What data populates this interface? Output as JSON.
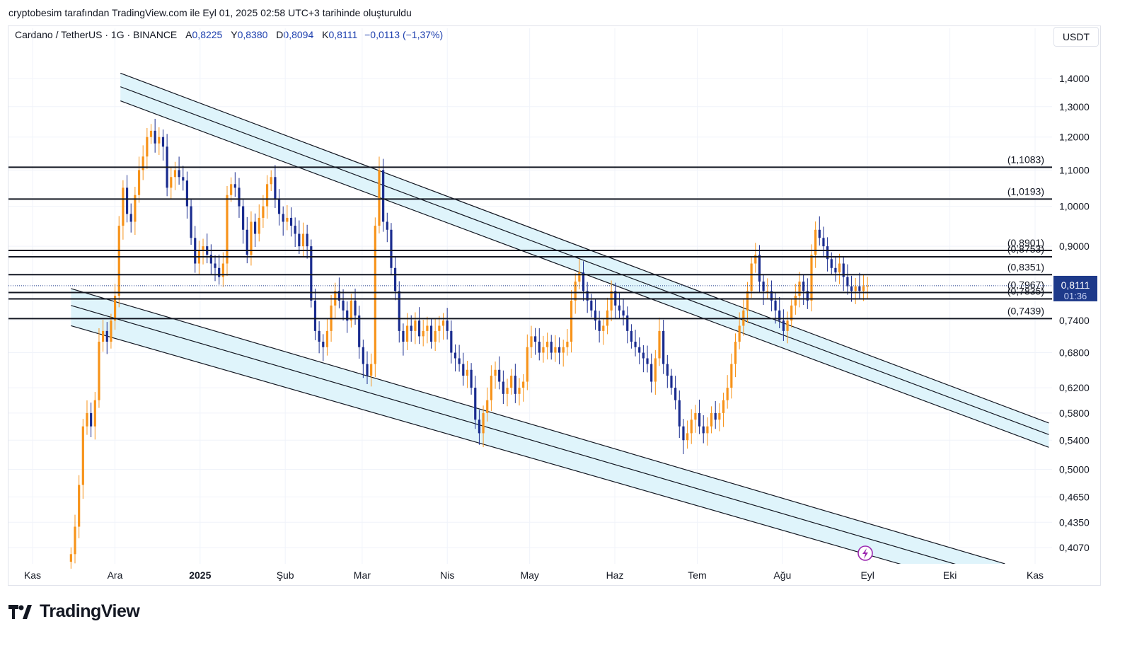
{
  "caption": "cryptobesim tarafından TradingView.com ile Eyl 01, 2025 02:58 UTC+3 tarihinde oluşturuldu",
  "legend": {
    "symbol": "Cardano / TetherUS · 1G · BINANCE",
    "open_label": "A",
    "open": "0,8225",
    "high_label": "Y",
    "high": "0,8380",
    "low_label": "D",
    "low": "0,8094",
    "close_label": "K",
    "close": "0,8111",
    "change": "−0,0113 (−1,37%)"
  },
  "currency_button": "USDT",
  "brand": "TradingView",
  "colors": {
    "up": "#f7931a",
    "down": "#1a2c8f",
    "channel_fill": "#dff4fb",
    "price_tag": "#1e3a8a",
    "lines": "#131722"
  },
  "chart_data": {
    "type": "candlestick",
    "instrument": "Cardano / TetherUS",
    "timeframe": "1G",
    "exchange": "BINANCE",
    "y_scale": "log",
    "ylim": [
      0.39,
      1.48
    ],
    "y_ticks": [
      1.4,
      1.3,
      1.2,
      1.1,
      1.0,
      0.9,
      0.74,
      0.68,
      0.62,
      0.58,
      0.54,
      0.5,
      0.465,
      0.435,
      0.407
    ],
    "y_tick_labels": [
      "1,4000",
      "1,3000",
      "1,2000",
      "1,1000",
      "1,0000",
      "0,9000",
      "0,7400",
      "0,6800",
      "0,6200",
      "0,5800",
      "0,5400",
      "0,5000",
      "0,4650",
      "0,4350",
      "0,4070"
    ],
    "x_labels": [
      "Kas",
      "Ara",
      "2025",
      "Şub",
      "Mar",
      "Nis",
      "May",
      "Haz",
      "Tem",
      "Ağu",
      "Eyl",
      "Eki",
      "Kas"
    ],
    "x_label_positions_days": [
      0,
      30,
      61,
      92,
      120,
      151,
      181,
      212,
      242,
      273,
      304,
      334,
      365
    ],
    "x_start": "2024-11-01",
    "horizontal_levels": [
      1.1083,
      1.0193,
      0.8901,
      0.8753,
      0.8351,
      0.7967,
      0.7835,
      0.7439
    ],
    "horizontal_level_labels": [
      "(1,1083)",
      "(1,0193)",
      "(0,8901)",
      "(0,8753)",
      "(0,8351)",
      "(0,7967)",
      "(0,7835)",
      "(0,7439)"
    ],
    "last_price": "0,8111",
    "countdown": "01:36",
    "channels": [
      {
        "name": "upper",
        "start_day": 32,
        "end_day": 370,
        "lines_start": [
          1.42,
          1.37,
          1.32
        ],
        "lines_end": [
          0.565,
          0.548,
          0.53
        ]
      },
      {
        "name": "lower",
        "start_day": 14,
        "end_day": 354,
        "lines_start": [
          0.805,
          0.77,
          0.73
        ],
        "lines_end": [
          0.39,
          0.375,
          0.36
        ]
      }
    ],
    "close_series": [
      {
        "d": 0,
        "c": 0.4
      },
      {
        "d": 1,
        "c": 0.43
      },
      {
        "d": 2,
        "c": 0.48
      },
      {
        "d": 3,
        "c": 0.56
      },
      {
        "d": 4,
        "c": 0.58
      },
      {
        "d": 5,
        "c": 0.56
      },
      {
        "d": 6,
        "c": 0.6
      },
      {
        "d": 7,
        "c": 0.7
      },
      {
        "d": 8,
        "c": 0.72
      },
      {
        "d": 9,
        "c": 0.7
      },
      {
        "d": 10,
        "c": 0.74
      },
      {
        "d": 11,
        "c": 0.79
      },
      {
        "d": 12,
        "c": 0.95
      },
      {
        "d": 13,
        "c": 1.05
      },
      {
        "d": 14,
        "c": 0.98
      },
      {
        "d": 15,
        "c": 0.96
      },
      {
        "d": 16,
        "c": 1.03
      },
      {
        "d": 17,
        "c": 1.1
      },
      {
        "d": 18,
        "c": 1.14
      },
      {
        "d": 19,
        "c": 1.2
      },
      {
        "d": 20,
        "c": 1.22
      },
      {
        "d": 21,
        "c": 1.18
      },
      {
        "d": 22,
        "c": 1.2
      },
      {
        "d": 23,
        "c": 1.17
      },
      {
        "d": 24,
        "c": 1.05
      },
      {
        "d": 25,
        "c": 1.08
      },
      {
        "d": 26,
        "c": 1.1
      },
      {
        "d": 27,
        "c": 1.08
      },
      {
        "d": 28,
        "c": 1.07
      },
      {
        "d": 29,
        "c": 1.0
      },
      {
        "d": 30,
        "c": 0.92
      },
      {
        "d": 31,
        "c": 0.86
      },
      {
        "d": 32,
        "c": 0.89
      },
      {
        "d": 33,
        "c": 0.9
      },
      {
        "d": 34,
        "c": 0.88
      },
      {
        "d": 35,
        "c": 0.86
      },
      {
        "d": 36,
        "c": 0.85
      },
      {
        "d": 37,
        "c": 0.83
      },
      {
        "d": 38,
        "c": 0.86
      },
      {
        "d": 39,
        "c": 1.03
      },
      {
        "d": 40,
        "c": 1.06
      },
      {
        "d": 41,
        "c": 1.05
      },
      {
        "d": 42,
        "c": 1.0
      },
      {
        "d": 43,
        "c": 0.94
      },
      {
        "d": 44,
        "c": 0.88
      },
      {
        "d": 45,
        "c": 0.96
      },
      {
        "d": 46,
        "c": 0.93
      },
      {
        "d": 47,
        "c": 0.97
      },
      {
        "d": 48,
        "c": 1.0
      },
      {
        "d": 49,
        "c": 1.06
      },
      {
        "d": 50,
        "c": 1.08
      },
      {
        "d": 51,
        "c": 1.02
      },
      {
        "d": 52,
        "c": 0.98
      },
      {
        "d": 53,
        "c": 0.96
      },
      {
        "d": 54,
        "c": 0.97
      },
      {
        "d": 55,
        "c": 0.95
      },
      {
        "d": 56,
        "c": 0.93
      },
      {
        "d": 57,
        "c": 0.9
      },
      {
        "d": 58,
        "c": 0.93
      },
      {
        "d": 59,
        "c": 0.9
      },
      {
        "d": 60,
        "c": 0.78
      },
      {
        "d": 61,
        "c": 0.72
      },
      {
        "d": 62,
        "c": 0.7
      },
      {
        "d": 63,
        "c": 0.69
      },
      {
        "d": 64,
        "c": 0.72
      },
      {
        "d": 65,
        "c": 0.77
      },
      {
        "d": 66,
        "c": 0.8
      },
      {
        "d": 67,
        "c": 0.78
      },
      {
        "d": 68,
        "c": 0.76
      },
      {
        "d": 69,
        "c": 0.74
      },
      {
        "d": 70,
        "c": 0.78
      },
      {
        "d": 71,
        "c": 0.75
      },
      {
        "d": 72,
        "c": 0.69
      },
      {
        "d": 73,
        "c": 0.66
      },
      {
        "d": 74,
        "c": 0.64
      },
      {
        "d": 75,
        "c": 0.66
      },
      {
        "d": 76,
        "c": 0.95
      },
      {
        "d": 77,
        "c": 1.1
      },
      {
        "d": 78,
        "c": 0.96
      },
      {
        "d": 79,
        "c": 0.94
      },
      {
        "d": 80,
        "c": 0.85
      },
      {
        "d": 81,
        "c": 0.8
      },
      {
        "d": 82,
        "c": 0.72
      },
      {
        "d": 83,
        "c": 0.7
      },
      {
        "d": 84,
        "c": 0.73
      },
      {
        "d": 85,
        "c": 0.72
      },
      {
        "d": 86,
        "c": 0.74
      },
      {
        "d": 87,
        "c": 0.71
      },
      {
        "d": 88,
        "c": 0.72
      },
      {
        "d": 89,
        "c": 0.73
      },
      {
        "d": 90,
        "c": 0.7
      },
      {
        "d": 91,
        "c": 0.72
      },
      {
        "d": 92,
        "c": 0.73
      },
      {
        "d": 93,
        "c": 0.74
      },
      {
        "d": 94,
        "c": 0.72
      },
      {
        "d": 95,
        "c": 0.68
      },
      {
        "d": 96,
        "c": 0.67
      },
      {
        "d": 97,
        "c": 0.66
      },
      {
        "d": 98,
        "c": 0.64
      },
      {
        "d": 99,
        "c": 0.65
      },
      {
        "d": 100,
        "c": 0.62
      },
      {
        "d": 101,
        "c": 0.57
      },
      {
        "d": 102,
        "c": 0.55
      },
      {
        "d": 103,
        "c": 0.58
      },
      {
        "d": 104,
        "c": 0.6
      },
      {
        "d": 105,
        "c": 0.64
      },
      {
        "d": 106,
        "c": 0.65
      },
      {
        "d": 107,
        "c": 0.63
      },
      {
        "d": 108,
        "c": 0.61
      },
      {
        "d": 109,
        "c": 0.62
      },
      {
        "d": 110,
        "c": 0.64
      },
      {
        "d": 111,
        "c": 0.61
      },
      {
        "d": 112,
        "c": 0.62
      },
      {
        "d": 113,
        "c": 0.63
      },
      {
        "d": 114,
        "c": 0.69
      },
      {
        "d": 115,
        "c": 0.71
      },
      {
        "d": 116,
        "c": 0.7
      },
      {
        "d": 117,
        "c": 0.68
      },
      {
        "d": 118,
        "c": 0.69
      },
      {
        "d": 119,
        "c": 0.7
      },
      {
        "d": 120,
        "c": 0.68
      },
      {
        "d": 121,
        "c": 0.69
      },
      {
        "d": 122,
        "c": 0.68
      },
      {
        "d": 123,
        "c": 0.69
      },
      {
        "d": 124,
        "c": 0.7
      },
      {
        "d": 125,
        "c": 0.78
      },
      {
        "d": 126,
        "c": 0.82
      },
      {
        "d": 127,
        "c": 0.84
      },
      {
        "d": 128,
        "c": 0.8
      },
      {
        "d": 129,
        "c": 0.78
      },
      {
        "d": 130,
        "c": 0.76
      },
      {
        "d": 131,
        "c": 0.74
      },
      {
        "d": 132,
        "c": 0.72
      },
      {
        "d": 133,
        "c": 0.73
      },
      {
        "d": 134,
        "c": 0.76
      },
      {
        "d": 135,
        "c": 0.8
      },
      {
        "d": 136,
        "c": 0.77
      },
      {
        "d": 137,
        "c": 0.76
      },
      {
        "d": 138,
        "c": 0.75
      },
      {
        "d": 139,
        "c": 0.72
      },
      {
        "d": 140,
        "c": 0.7
      },
      {
        "d": 141,
        "c": 0.69
      },
      {
        "d": 142,
        "c": 0.68
      },
      {
        "d": 143,
        "c": 0.67
      },
      {
        "d": 144,
        "c": 0.66
      },
      {
        "d": 145,
        "c": 0.63
      },
      {
        "d": 146,
        "c": 0.67
      },
      {
        "d": 147,
        "c": 0.72
      },
      {
        "d": 148,
        "c": 0.66
      },
      {
        "d": 149,
        "c": 0.64
      },
      {
        "d": 150,
        "c": 0.62
      },
      {
        "d": 151,
        "c": 0.6
      },
      {
        "d": 152,
        "c": 0.56
      },
      {
        "d": 153,
        "c": 0.54
      },
      {
        "d": 154,
        "c": 0.55
      },
      {
        "d": 155,
        "c": 0.57
      },
      {
        "d": 156,
        "c": 0.58
      },
      {
        "d": 157,
        "c": 0.56
      },
      {
        "d": 158,
        "c": 0.55
      },
      {
        "d": 159,
        "c": 0.56
      },
      {
        "d": 160,
        "c": 0.58
      },
      {
        "d": 161,
        "c": 0.57
      },
      {
        "d": 162,
        "c": 0.58
      },
      {
        "d": 163,
        "c": 0.6
      },
      {
        "d": 164,
        "c": 0.62
      },
      {
        "d": 165,
        "c": 0.66
      },
      {
        "d": 166,
        "c": 0.7
      },
      {
        "d": 167,
        "c": 0.73
      },
      {
        "d": 168,
        "c": 0.76
      },
      {
        "d": 169,
        "c": 0.8
      },
      {
        "d": 170,
        "c": 0.86
      },
      {
        "d": 171,
        "c": 0.88
      },
      {
        "d": 172,
        "c": 0.82
      },
      {
        "d": 173,
        "c": 0.8
      },
      {
        "d": 174,
        "c": 0.8
      },
      {
        "d": 175,
        "c": 0.78
      },
      {
        "d": 176,
        "c": 0.76
      },
      {
        "d": 177,
        "c": 0.74
      },
      {
        "d": 178,
        "c": 0.72
      },
      {
        "d": 179,
        "c": 0.74
      },
      {
        "d": 180,
        "c": 0.77
      },
      {
        "d": 181,
        "c": 0.79
      },
      {
        "d": 182,
        "c": 0.82
      },
      {
        "d": 183,
        "c": 0.8
      },
      {
        "d": 184,
        "c": 0.78
      },
      {
        "d": 185,
        "c": 0.88
      },
      {
        "d": 186,
        "c": 0.94
      },
      {
        "d": 187,
        "c": 0.92
      },
      {
        "d": 188,
        "c": 0.9
      },
      {
        "d": 189,
        "c": 0.87
      },
      {
        "d": 190,
        "c": 0.85
      },
      {
        "d": 191,
        "c": 0.84
      },
      {
        "d": 192,
        "c": 0.86
      },
      {
        "d": 193,
        "c": 0.83
      },
      {
        "d": 194,
        "c": 0.81
      },
      {
        "d": 195,
        "c": 0.8
      },
      {
        "d": 196,
        "c": 0.81
      },
      {
        "d": 197,
        "c": 0.8
      },
      {
        "d": 198,
        "c": 0.81
      },
      {
        "d": 199,
        "c": 0.811
      }
    ]
  }
}
